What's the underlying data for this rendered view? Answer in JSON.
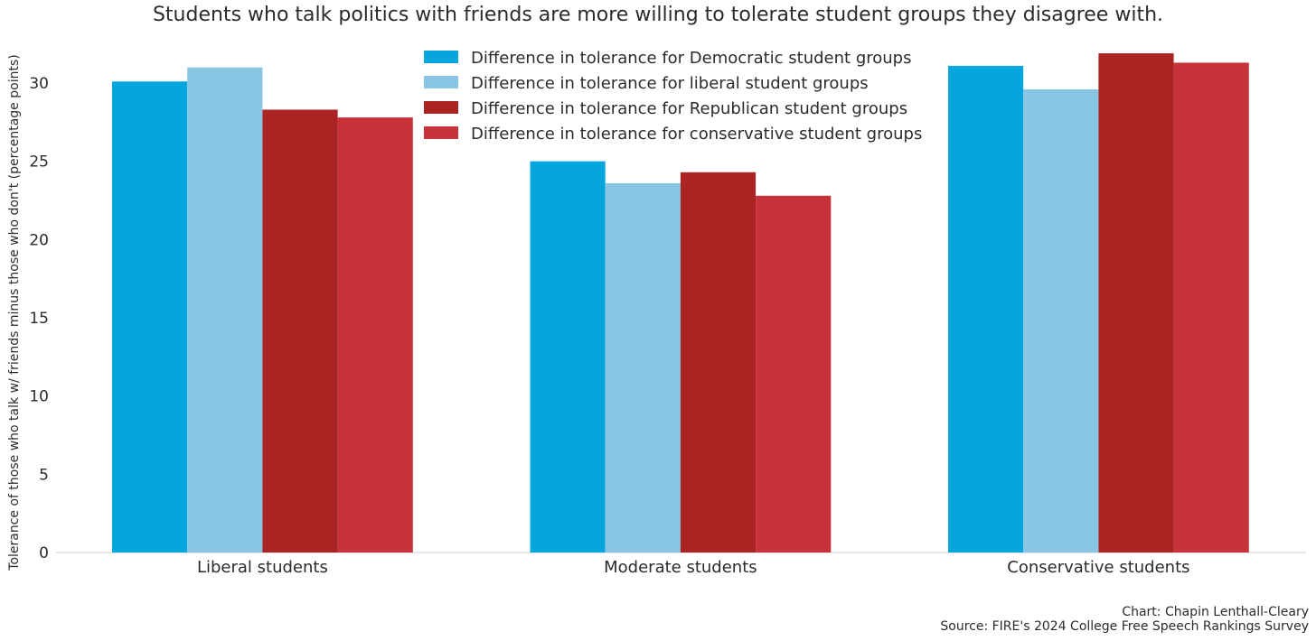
{
  "chart_data": {
    "type": "bar",
    "title": "Students who talk politics with friends are more willing to tolerate student groups they disagree with.",
    "ylabel": "Tolerance of those who talk w/ friends minus those who don't (percentage points)",
    "xlabel": "",
    "categories": [
      "Liberal students",
      "Moderate students",
      "Conservative students"
    ],
    "series": [
      {
        "name": "Difference in tolerance for Democratic student groups",
        "color": "#05a6dd",
        "values": [
          30.1,
          25.0,
          31.1
        ]
      },
      {
        "name": "Difference in tolerance for liberal student groups",
        "color": "#88c6e4",
        "values": [
          31.0,
          23.6,
          29.6
        ]
      },
      {
        "name": "Difference in tolerance for Republican student groups",
        "color": "#aa2423",
        "values": [
          28.3,
          24.3,
          31.9
        ]
      },
      {
        "name": "Difference in tolerance for conservative student groups",
        "color": "#c8323a",
        "values": [
          27.8,
          22.8,
          31.3
        ]
      }
    ],
    "ylim": [
      0,
      33
    ],
    "yticks": [
      0,
      5,
      10,
      15,
      20,
      25,
      30
    ],
    "grid": false,
    "legend_position": "top-center"
  },
  "credits": {
    "chart_by": "Chart: Chapin Lenthall-Cleary",
    "source": "Source: FIRE's 2024 College Free Speech Rankings Survey"
  }
}
